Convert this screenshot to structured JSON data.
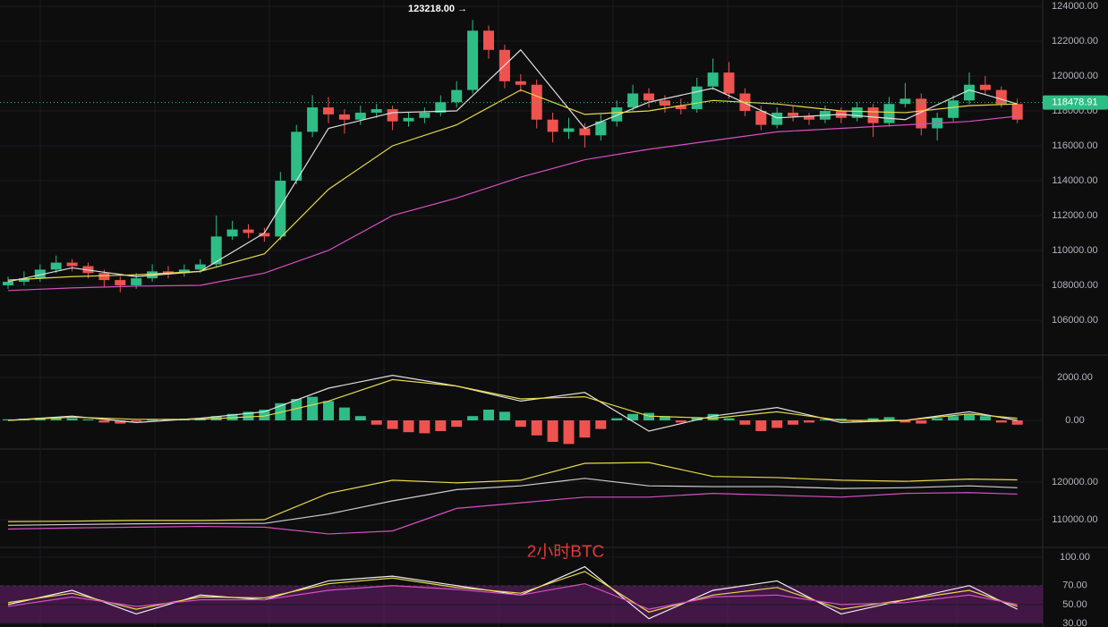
{
  "chart_data": [
    {
      "type": "candlestick",
      "up_color": "#2ebd85",
      "down_color": "#ef5350",
      "ohlc": [
        [
          108000,
          108500,
          107800,
          108200
        ],
        [
          108200,
          108800,
          108000,
          108400
        ],
        [
          108400,
          109200,
          108200,
          108900
        ],
        [
          108900,
          109700,
          108700,
          109300
        ],
        [
          109300,
          109500,
          108800,
          109100
        ],
        [
          109100,
          109300,
          108400,
          108700
        ],
        [
          108700,
          108900,
          107900,
          108300
        ],
        [
          108300,
          108500,
          107600,
          108000
        ],
        [
          108000,
          108700,
          107800,
          108400
        ],
        [
          108400,
          109200,
          108200,
          108800
        ],
        [
          108800,
          109100,
          108400,
          108700
        ],
        [
          108700,
          109200,
          108500,
          108900
        ],
        [
          108900,
          109500,
          108700,
          109200
        ],
        [
          109200,
          112000,
          109000,
          110800
        ],
        [
          110800,
          111700,
          110600,
          111200
        ],
        [
          111200,
          111500,
          110700,
          111000
        ],
        [
          111000,
          111300,
          110500,
          110800
        ],
        [
          110800,
          114500,
          110600,
          114000
        ],
        [
          114000,
          117200,
          113800,
          116800
        ],
        [
          116800,
          118900,
          116500,
          118200
        ],
        [
          118200,
          118800,
          117300,
          117800
        ],
        [
          117800,
          118100,
          116700,
          117500
        ],
        [
          117500,
          118300,
          117200,
          117900
        ],
        [
          117900,
          118400,
          117600,
          118100
        ],
        [
          118100,
          118300,
          116900,
          117400
        ],
        [
          117400,
          117900,
          117100,
          117600
        ],
        [
          117600,
          118200,
          117300,
          117900
        ],
        [
          117900,
          118900,
          117700,
          118500
        ],
        [
          118500,
          119700,
          118200,
          119200
        ],
        [
          119200,
          123218,
          119000,
          122600
        ],
        [
          122600,
          122900,
          121000,
          121500
        ],
        [
          121500,
          121800,
          119300,
          119700
        ],
        [
          119700,
          120100,
          119100,
          119500
        ],
        [
          119500,
          119800,
          117000,
          117500
        ],
        [
          117500,
          117900,
          116200,
          116800
        ],
        [
          116800,
          117600,
          116400,
          117000
        ],
        [
          117000,
          117300,
          115900,
          116600
        ],
        [
          116600,
          117800,
          116300,
          117400
        ],
        [
          117400,
          118600,
          117100,
          118200
        ],
        [
          118200,
          119500,
          118000,
          119000
        ],
        [
          119000,
          119300,
          118200,
          118600
        ],
        [
          118600,
          118900,
          117900,
          118300
        ],
        [
          118300,
          118700,
          117800,
          118100
        ],
        [
          118100,
          119900,
          117900,
          119400
        ],
        [
          119400,
          121000,
          119200,
          120200
        ],
        [
          120200,
          120800,
          118700,
          119000
        ],
        [
          119000,
          119300,
          117700,
          118000
        ],
        [
          118000,
          118300,
          116900,
          117200
        ],
        [
          117200,
          118200,
          117000,
          117900
        ],
        [
          117900,
          118300,
          117400,
          117700
        ],
        [
          117700,
          117900,
          117200,
          117500
        ],
        [
          117500,
          118300,
          117300,
          118000
        ],
        [
          118000,
          118200,
          117300,
          117600
        ],
        [
          117600,
          118500,
          117400,
          118200
        ],
        [
          118200,
          118400,
          116500,
          117300
        ],
        [
          117300,
          118800,
          117100,
          118400
        ],
        [
          118400,
          119600,
          118200,
          118700
        ],
        [
          118700,
          119000,
          116600,
          117000
        ],
        [
          117000,
          117900,
          116300,
          117600
        ],
        [
          117600,
          118900,
          117400,
          118600
        ],
        [
          118600,
          120200,
          118400,
          119500
        ],
        [
          119500,
          120000,
          118900,
          119200
        ],
        [
          119200,
          119400,
          118200,
          118400
        ],
        [
          118400,
          118700,
          117300,
          117500
        ]
      ],
      "x": [
        0,
        4,
        8,
        12,
        16,
        20,
        24,
        28,
        32,
        36,
        40,
        44,
        48,
        52,
        56,
        60,
        63
      ],
      "series": [
        {
          "color": "#e0e0e0",
          "values": [
            108200,
            109000,
            108500,
            108800,
            111000,
            117000,
            117900,
            118000,
            121500,
            117000,
            118500,
            119300,
            117600,
            117800,
            117500,
            119200,
            118400
          ]
        },
        {
          "color": "#e8d94a",
          "values": [
            108300,
            108500,
            108600,
            108800,
            109800,
            113500,
            116000,
            117200,
            119200,
            117800,
            118000,
            118600,
            118400,
            118000,
            117900,
            118300,
            118400
          ]
        },
        {
          "color": "#d84fc4",
          "values": [
            107700,
            107850,
            107950,
            108000,
            108700,
            110000,
            112000,
            113000,
            114200,
            115200,
            115800,
            116300,
            116800,
            117000,
            117200,
            117400,
            117700
          ]
        }
      ],
      "ylim": [
        104100,
        124360
      ],
      "yticks": [
        {
          "value": 106000,
          "label": "106000.00"
        },
        {
          "value": 108000,
          "label": "108000.00"
        },
        {
          "value": 110000,
          "label": "110000.00"
        },
        {
          "value": 112000,
          "label": "112000.00"
        },
        {
          "value": 114000,
          "label": "114000.00"
        },
        {
          "value": 116000,
          "label": "116000.00"
        },
        {
          "value": 118000,
          "label": "118000.00"
        },
        {
          "value": 120000,
          "label": "120000.00"
        },
        {
          "value": 122000,
          "label": "122000.00"
        },
        {
          "value": 124000,
          "label": "124000.00"
        }
      ],
      "annotation": {
        "value": 123218,
        "label": "123218.00 →"
      },
      "last_price": 118478.91,
      "last_price_color": "#2ebd85"
    },
    {
      "type": "macd",
      "up_color": "#2ebd85",
      "down_color": "#ef5350",
      "histogram": [
        50,
        80,
        120,
        150,
        100,
        50,
        -100,
        -150,
        -50,
        30,
        50,
        80,
        100,
        200,
        300,
        400,
        500,
        800,
        1000,
        1100,
        900,
        600,
        200,
        -200,
        -400,
        -550,
        -600,
        -500,
        -300,
        200,
        500,
        400,
        -300,
        -700,
        -1000,
        -1100,
        -800,
        -400,
        100,
        300,
        350,
        200,
        -100,
        150,
        300,
        100,
        -200,
        -500,
        -350,
        -200,
        -100,
        50,
        80,
        -50,
        100,
        150,
        -100,
        -150,
        100,
        200,
        300,
        200,
        -100,
        -200
      ],
      "x": [
        0,
        4,
        8,
        12,
        16,
        20,
        24,
        28,
        32,
        36,
        40,
        44,
        48,
        52,
        56,
        60,
        63
      ],
      "series": [
        {
          "color": "#e0e0e0",
          "values": [
            0,
            200,
            -100,
            100,
            400,
            1500,
            2100,
            1600,
            900,
            1300,
            -500,
            200,
            600,
            -100,
            0,
            400,
            0
          ]
        },
        {
          "color": "#e8d94a",
          "values": [
            0,
            150,
            50,
            50,
            200,
            900,
            1900,
            1600,
            1000,
            1100,
            200,
            100,
            400,
            0,
            0,
            300,
            100
          ]
        }
      ],
      "ylim": [
        -1250,
        2917
      ],
      "yticks": [
        {
          "value": 0,
          "label": "0.00"
        },
        {
          "value": 2000,
          "label": "2000.00"
        }
      ]
    },
    {
      "type": "line",
      "title": "2小时BTC",
      "x": [
        0,
        4,
        8,
        12,
        16,
        20,
        24,
        28,
        32,
        36,
        40,
        44,
        48,
        52,
        56,
        60,
        63
      ],
      "series": [
        {
          "color": "#e8d94a",
          "values": [
            109500,
            109600,
            109800,
            109800,
            110000,
            117000,
            120500,
            119800,
            120500,
            125000,
            125200,
            121500,
            121200,
            120500,
            120200,
            120800,
            120600
          ]
        },
        {
          "color": "#cfcfcf",
          "values": [
            108500,
            108700,
            108900,
            109000,
            109000,
            111500,
            115000,
            118000,
            119000,
            121000,
            119000,
            118800,
            118800,
            118300,
            118500,
            119000,
            118500
          ]
        },
        {
          "color": "#d84fc4",
          "values": [
            107500,
            107800,
            108000,
            108200,
            108000,
            106200,
            107000,
            113000,
            114500,
            116000,
            116000,
            117000,
            116500,
            116000,
            117000,
            117200,
            116800
          ]
        }
      ],
      "ylim": [
        103095,
        128095
      ],
      "yticks": [
        {
          "value": 110000,
          "label": "110000.00"
        },
        {
          "value": 120000,
          "label": "120000.00"
        }
      ]
    },
    {
      "type": "line",
      "x": [
        0,
        4,
        8,
        12,
        16,
        20,
        24,
        28,
        32,
        36,
        40,
        44,
        48,
        52,
        56,
        60,
        63
      ],
      "band": [
        30,
        70
      ],
      "band_color": "#5a1d5e",
      "series": [
        {
          "color": "#f0f0f0",
          "values": [
            50,
            65,
            40,
            60,
            55,
            75,
            80,
            70,
            60,
            90,
            35,
            65,
            75,
            40,
            55,
            70,
            45
          ]
        },
        {
          "color": "#e8d94a",
          "values": [
            52,
            62,
            45,
            58,
            57,
            72,
            78,
            68,
            62,
            85,
            42,
            60,
            68,
            45,
            55,
            65,
            48
          ]
        },
        {
          "color": "#d84fc4",
          "values": [
            48,
            58,
            48,
            55,
            55,
            65,
            70,
            66,
            60,
            72,
            45,
            58,
            60,
            50,
            52,
            60,
            50
          ]
        }
      ],
      "ylim": [
        26.2,
        107.6
      ],
      "yticks": [
        {
          "value": 30,
          "label": "30.00"
        },
        {
          "value": 50,
          "label": "50.00"
        },
        {
          "value": 70,
          "label": "70.00"
        },
        {
          "value": 100,
          "label": "100.00"
        }
      ]
    }
  ]
}
